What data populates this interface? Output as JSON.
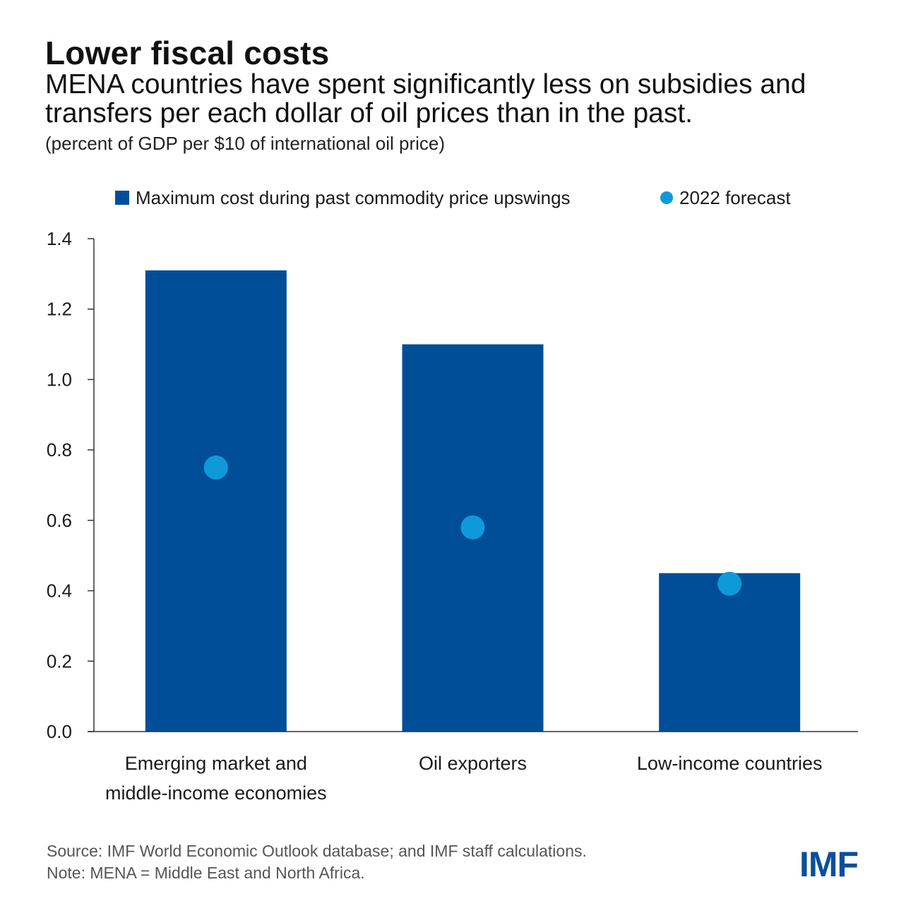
{
  "header": {
    "title": "Lower fiscal costs",
    "subtitle": "MENA countries have spent significantly less on subsidies and transfers per each dollar of oil prices than in the past.",
    "units": "(percent of GDP per $10 of international oil price)"
  },
  "colors": {
    "bar": "#014e98",
    "dot": "#0e9ad9",
    "logo": "#0b4f9c"
  },
  "chart_data": {
    "type": "bar",
    "categories": [
      [
        "Emerging market and",
        "middle-income economies"
      ],
      [
        "Oil exporters"
      ],
      [
        "Low-income countries"
      ]
    ],
    "series": [
      {
        "name": "Maximum cost during past commodity price upswings",
        "type": "bar",
        "values": [
          1.31,
          1.1,
          0.45
        ]
      },
      {
        "name": "2022 forecast",
        "type": "scatter",
        "values": [
          0.75,
          0.58,
          0.42
        ]
      }
    ],
    "yticks": [
      "0.0",
      "0.2",
      "0.4",
      "0.6",
      "0.8",
      "1.0",
      "1.2",
      "1.4"
    ],
    "ylim": [
      0,
      1.4
    ],
    "legend_position": "top",
    "grid": false
  },
  "footer": {
    "source": "Source: IMF World Economic Outlook database; and IMF staff calculations.",
    "note": "Note: MENA = Middle East and North Africa."
  },
  "logo": {
    "text": "IMF"
  }
}
